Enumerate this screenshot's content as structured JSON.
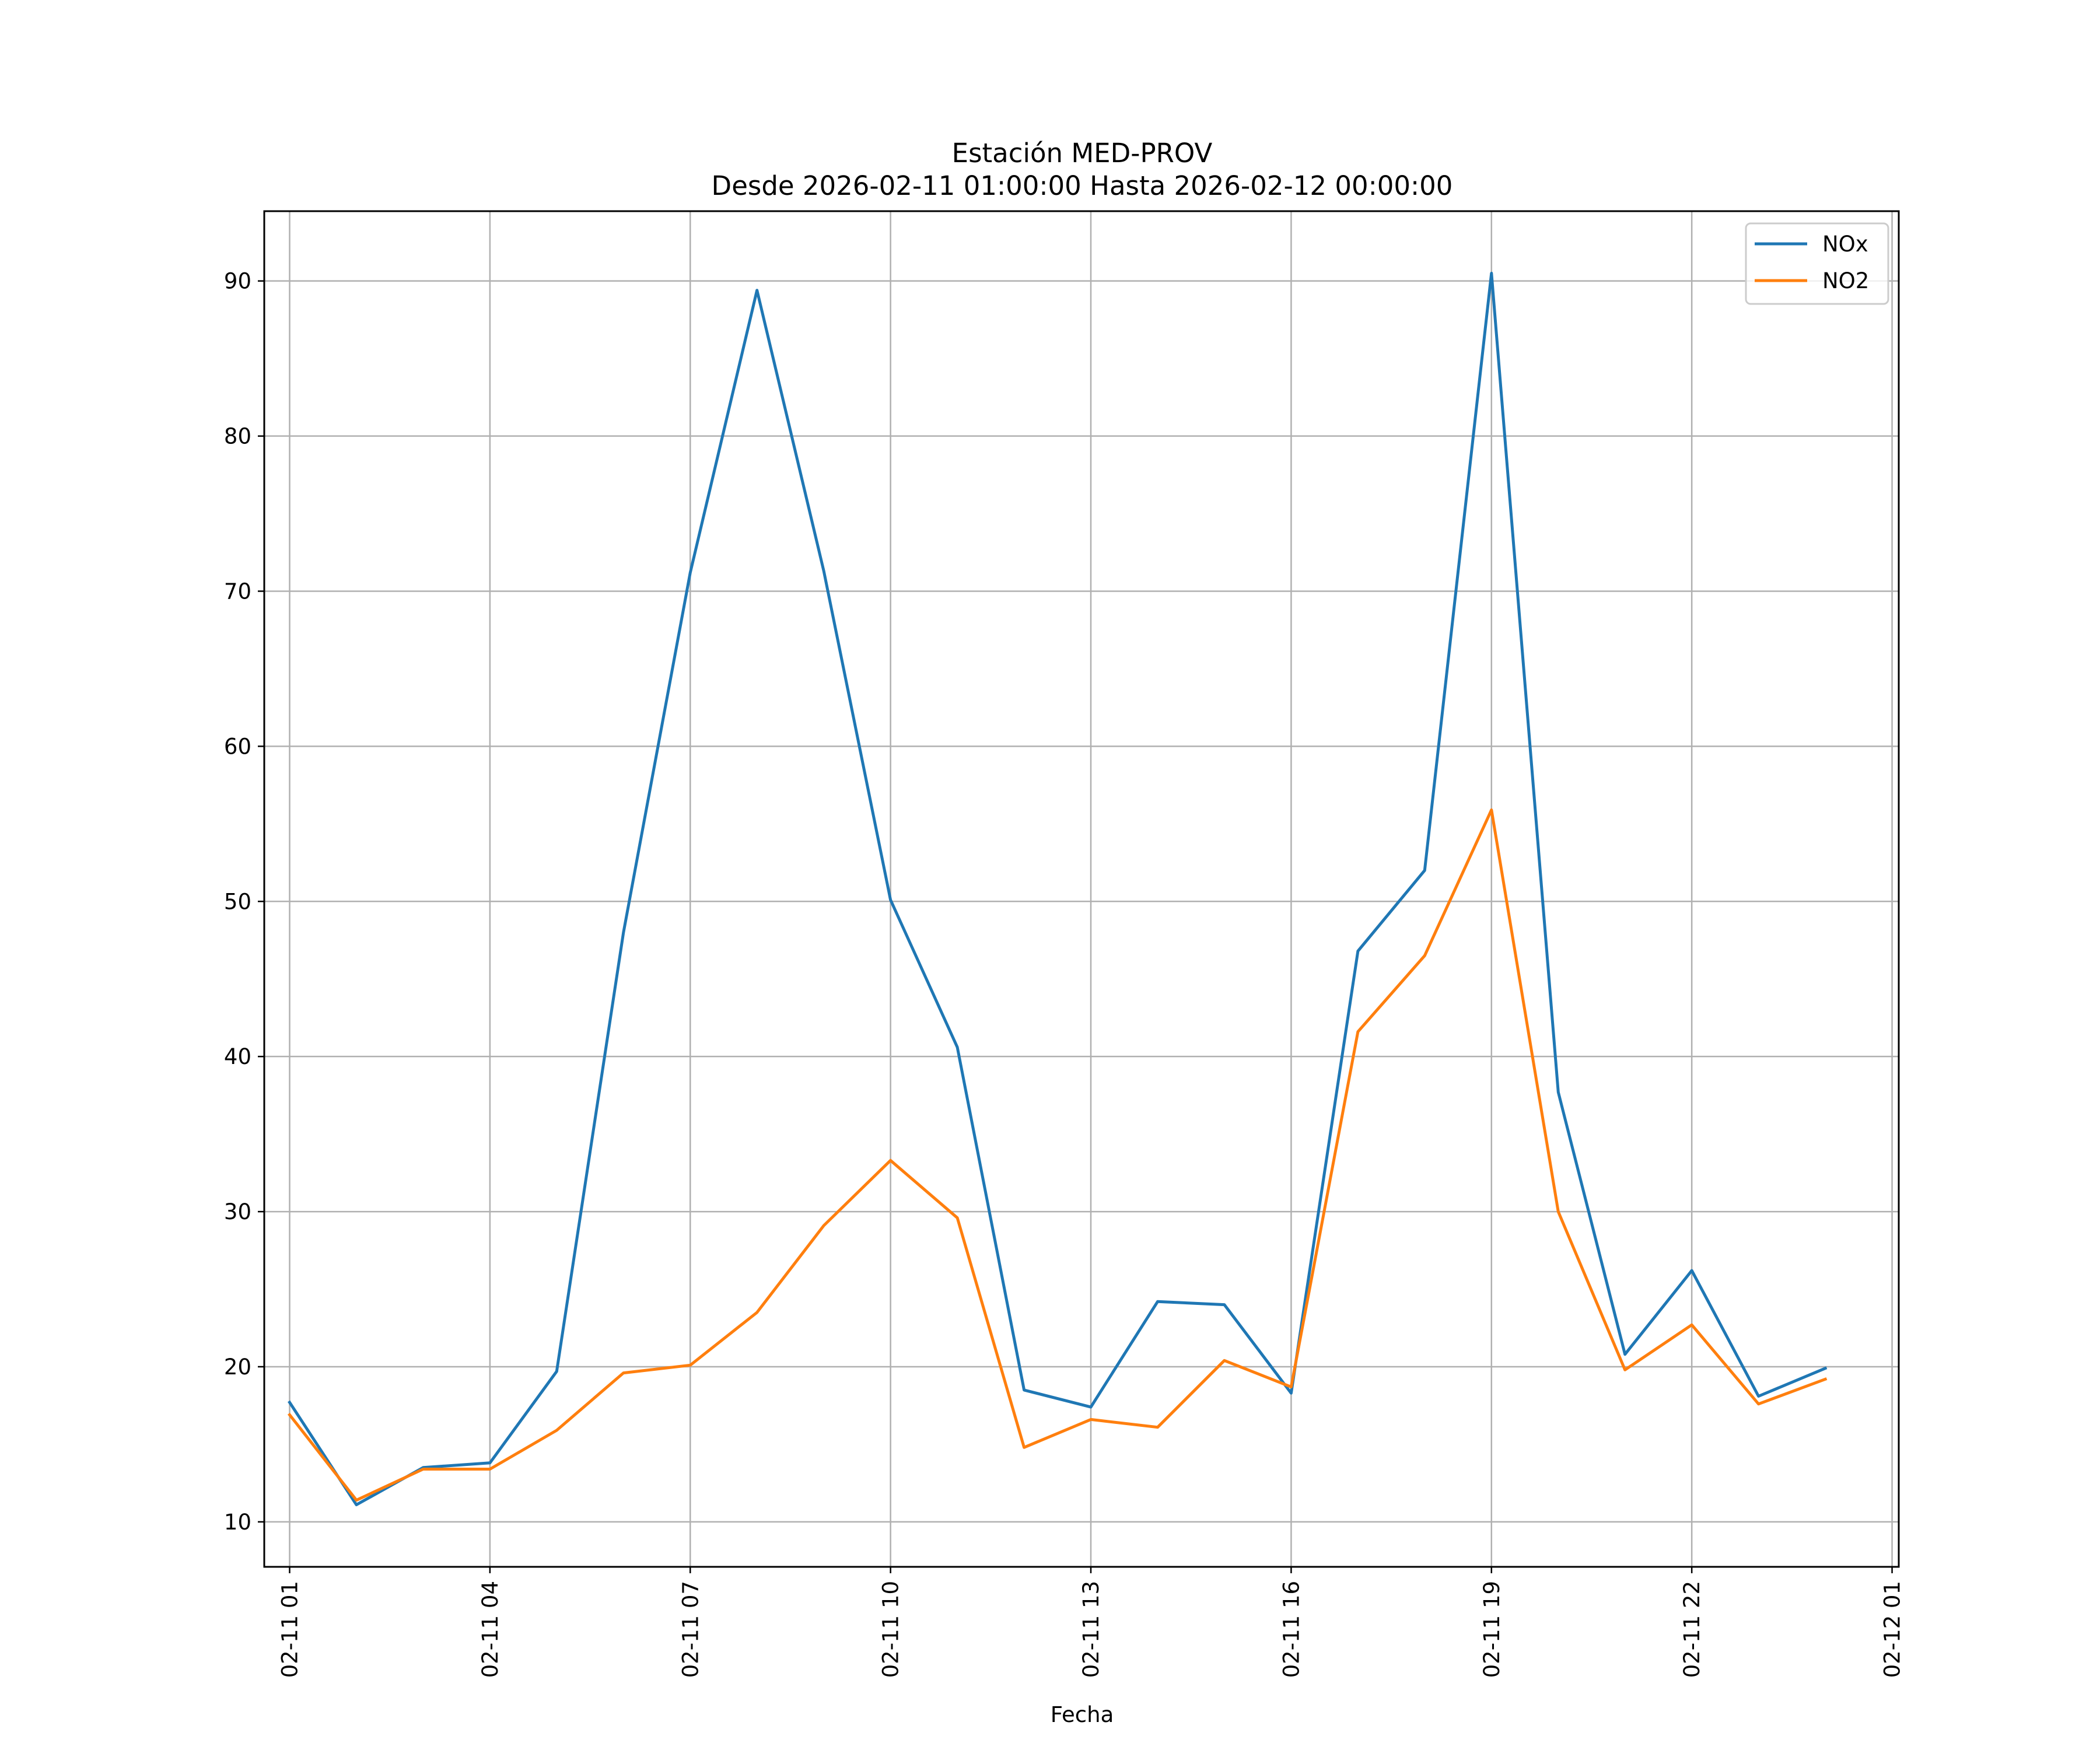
{
  "chart_data": {
    "type": "line",
    "title_lines": [
      "Estación MED-PROV",
      "Desde 2026-02-11 01:00:00 Hasta 2026-02-12 00:00:00"
    ],
    "xlabel": "Fecha",
    "ylabel": "",
    "x_hours": [
      1,
      2,
      3,
      4,
      5,
      6,
      7,
      8,
      9,
      10,
      11,
      12,
      13,
      14,
      15,
      16,
      17,
      18,
      19,
      20,
      21,
      22,
      23,
      24
    ],
    "xlim": [
      0.62,
      25.1
    ],
    "ylim": [
      7.1,
      94.5
    ],
    "y_ticks": [
      10,
      20,
      30,
      40,
      50,
      60,
      70,
      80,
      90
    ],
    "x_ticks": [
      {
        "hour": 1,
        "label": "02-11 01"
      },
      {
        "hour": 4,
        "label": "02-11 04"
      },
      {
        "hour": 7,
        "label": "02-11 07"
      },
      {
        "hour": 10,
        "label": "02-11 10"
      },
      {
        "hour": 13,
        "label": "02-11 13"
      },
      {
        "hour": 16,
        "label": "02-11 16"
      },
      {
        "hour": 19,
        "label": "02-11 19"
      },
      {
        "hour": 22,
        "label": "02-11 22"
      },
      {
        "hour": 25,
        "label": "02-12 01"
      }
    ],
    "grid": true,
    "legend_position": "top-right",
    "series": [
      {
        "name": "NOx",
        "color": "#1f77b4",
        "values": [
          17.7,
          11.1,
          13.5,
          13.8,
          19.7,
          48.0,
          71.2,
          89.4,
          71.3,
          50.1,
          40.6,
          18.5,
          17.4,
          24.2,
          24.0,
          18.3,
          46.8,
          52.0,
          90.5,
          37.7,
          20.8,
          26.2,
          18.1,
          19.9
        ]
      },
      {
        "name": "NO2",
        "color": "#ff7f0e",
        "values": [
          16.9,
          11.4,
          13.4,
          13.4,
          15.9,
          19.6,
          20.1,
          23.5,
          29.1,
          33.3,
          29.6,
          14.8,
          16.6,
          16.1,
          20.4,
          18.7,
          41.6,
          46.5,
          55.9,
          30.0,
          19.8,
          22.7,
          17.6,
          19.2
        ]
      }
    ]
  }
}
